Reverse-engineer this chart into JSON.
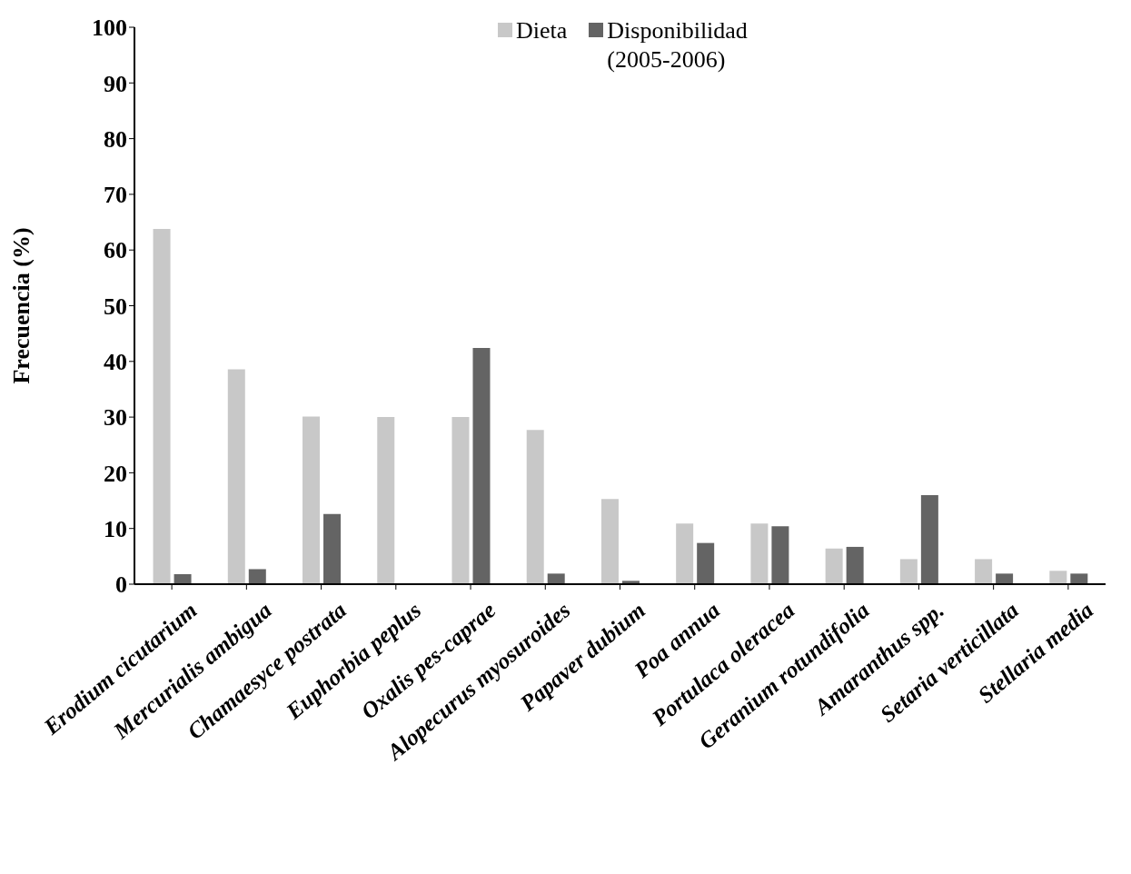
{
  "chart_data": {
    "type": "bar",
    "ylabel": "Frecuencia (%)",
    "categories": [
      "Erodium cicutarium",
      "Mercurialis ambigua",
      "Chamaesyce postrata",
      "Euphorbia peplus",
      "Oxalis pes-caprae",
      "Alopecurus myosuroides",
      "Papaver dubium",
      "Poa annua",
      "Portulaca oleracea",
      "Geranium rotundifolia",
      "Amaranthus spp.",
      "Setaria verticillata",
      "Stellaria media"
    ],
    "series": [
      {
        "name": "Dieta",
        "color": "#c8c8c8",
        "values": [
          63.8,
          38.6,
          30.1,
          30,
          30,
          27.7,
          15.3,
          10.9,
          10.9,
          6.4,
          4.5,
          4.5,
          2.4
        ]
      },
      {
        "name": "Disponibilidad (2005-2006)",
        "color": "#646464",
        "values": [
          1.8,
          2.7,
          12.6,
          0,
          42.4,
          1.9,
          0.6,
          7.4,
          10.4,
          6.7,
          16,
          1.9,
          1.9
        ]
      }
    ],
    "ylim": [
      0,
      100
    ],
    "yticks": [
      0,
      10,
      20,
      30,
      40,
      50,
      60,
      70,
      80,
      90,
      100
    ],
    "grid": false,
    "legend": "top"
  }
}
